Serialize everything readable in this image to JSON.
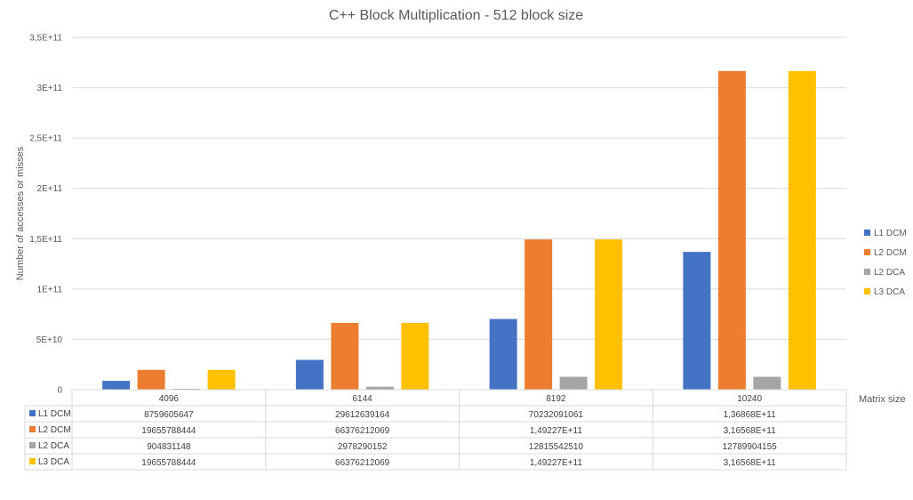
{
  "chart_data": {
    "type": "bar",
    "title": "C++ Block Multiplication - 512 block size",
    "xlabel": "Matrix size",
    "ylabel": "Number of accesses or misses",
    "ylim": [
      0,
      350000000000
    ],
    "y_ticks": [
      0,
      50000000000,
      100000000000,
      150000000000,
      200000000000,
      250000000000,
      300000000000,
      350000000000
    ],
    "y_tick_labels": [
      "0",
      "5E+10",
      "1E+11",
      "1,5E+11",
      "2E+11",
      "2,5E+11",
      "3E+11",
      "3,5E+11"
    ],
    "grid": true,
    "legend_position": "right",
    "categories": [
      "4096",
      "6144",
      "8192",
      "10240"
    ],
    "series": [
      {
        "name": "L1 DCM",
        "color": "#4472C4",
        "values": [
          8759605647,
          29612639164,
          70232091061,
          136868000000
        ],
        "labels": [
          "8759605647",
          "29612639164",
          "70232091061",
          "1,36868E+11"
        ]
      },
      {
        "name": "L2 DCM",
        "color": "#ED7D31",
        "values": [
          19655788444,
          66376212069,
          149227000000,
          316568000000
        ],
        "labels": [
          "19655788444",
          "66376212069",
          "1,49227E+11",
          "3,16568E+11"
        ]
      },
      {
        "name": "L2 DCA",
        "color": "#A5A5A5",
        "values": [
          904831148,
          2978290152,
          12815542510,
          12789904155
        ],
        "labels": [
          "904831148",
          "2978290152",
          "12815542510",
          "12789904155"
        ]
      },
      {
        "name": "L3 DCA",
        "color": "#FFC000",
        "values": [
          19655788444,
          66376212069,
          149227000000,
          316568000000
        ],
        "labels": [
          "19655788444",
          "66376212069",
          "1,49227E+11",
          "3,16568E+11"
        ]
      }
    ]
  }
}
